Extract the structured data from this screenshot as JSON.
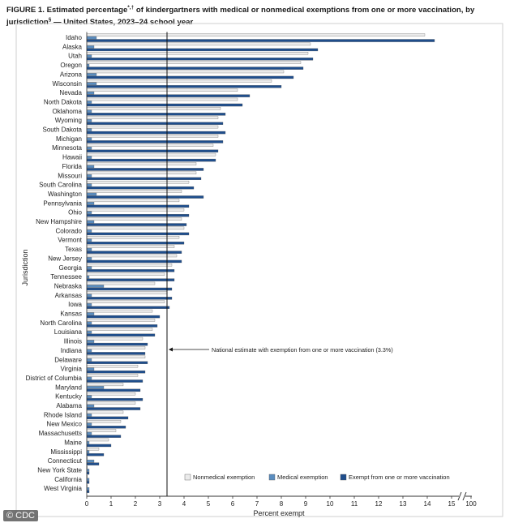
{
  "figure_title_parts": [
    "FIGURE 1. Estimated percentage",
    "*,†",
    " of kindergartners with medical or nonmedical exemptions from one or more vaccination, by",
    "jurisdiction",
    "§",
    " — United States, 2023–24 school year"
  ],
  "credit": "© CDC",
  "colors": {
    "nonmedical": "#ebebeb",
    "medical": "#5a8dc0",
    "exempt": "#1f4e8c",
    "bar_stroke": "#555555",
    "axis": "#333333"
  },
  "chart_data": {
    "type": "bar",
    "orientation": "horizontal",
    "ylabel": "Jurisdiction",
    "xlabel": "Percent exempt",
    "xlim": [
      0,
      15
    ],
    "x_ticks": [
      "0",
      "1",
      "2",
      "3",
      "4",
      "5",
      "6",
      "7",
      "8",
      "9",
      "10",
      "11",
      "12",
      "13",
      "14",
      "15",
      "100"
    ],
    "axis_break": true,
    "reference_line": {
      "value": 3.3,
      "label": "National estimate with exemption from one or more vaccination (3.3%)"
    },
    "legend": [
      "Nonmedical exemption",
      "Medical exemption",
      "Exempt from one or more vaccination"
    ],
    "legend_position": "bottom-right",
    "categories": [
      "Idaho",
      "Alaska",
      "Utah",
      "Oregon",
      "Arizona",
      "Wisconsin",
      "Nevada",
      "North Dakota",
      "Oklahoma",
      "Wyoming",
      "South Dakota",
      "Michigan",
      "Minnesota",
      "Hawaii",
      "Florida",
      "Missouri",
      "South Carolina",
      "Washington",
      "Pennsylvania",
      "Ohio",
      "New Hampshire",
      "Colorado",
      "Vermont",
      "Texas",
      "New Jersey",
      "Georgia",
      "Tennessee",
      "Nebraska",
      "Arkansas",
      "Iowa",
      "Kansas",
      "North Carolina",
      "Louisiana",
      "Illinois",
      "Indiana",
      "Delaware",
      "Virginia",
      "District of Columbia",
      "Maryland",
      "Kentucky",
      "Alabama",
      "Rhode Island",
      "New Mexico",
      "Massachusetts",
      "Maine",
      "Mississippi",
      "Connecticut",
      "New York State",
      "California",
      "West Virginia"
    ],
    "series": [
      {
        "name": "Nonmedical exemption",
        "values": [
          13.9,
          9.2,
          9.1,
          8.8,
          8.1,
          7.6,
          6.2,
          6.2,
          5.5,
          5.4,
          5.4,
          5.4,
          5.2,
          5.3,
          4.5,
          4.5,
          4.2,
          3.9,
          3.8,
          4.0,
          3.9,
          4.0,
          3.8,
          3.6,
          3.7,
          3.5,
          3.2,
          2.8,
          3.3,
          3.2,
          2.7,
          2.8,
          2.7,
          2.3,
          2.4,
          2.4,
          2.1,
          2.1,
          1.5,
          2.0,
          2.0,
          1.5,
          1.4,
          1.2,
          0.9,
          0.5,
          0.0,
          0.0,
          0.0,
          0.0
        ]
      },
      {
        "name": "Medical exemption",
        "values": [
          0.4,
          0.3,
          0.2,
          0.1,
          0.4,
          0.4,
          0.3,
          0.2,
          0.2,
          0.2,
          0.2,
          0.2,
          0.2,
          0.2,
          0.3,
          0.2,
          0.2,
          0.4,
          0.3,
          0.2,
          0.3,
          0.2,
          0.2,
          0.2,
          0.2,
          0.2,
          0.1,
          0.7,
          0.2,
          0.2,
          0.3,
          0.2,
          0.2,
          0.3,
          0.2,
          0.2,
          0.3,
          0.2,
          0.7,
          0.2,
          0.3,
          0.2,
          0.2,
          0.2,
          0.1,
          0.1,
          0.3,
          0.1,
          0.1,
          0.1
        ]
      },
      {
        "name": "Exempt from one or more vaccination",
        "values": [
          14.3,
          9.5,
          9.3,
          8.9,
          8.5,
          8.0,
          6.7,
          6.4,
          5.7,
          5.6,
          5.7,
          5.6,
          5.4,
          5.3,
          4.8,
          4.7,
          4.4,
          4.8,
          4.2,
          4.2,
          4.1,
          4.2,
          4.0,
          3.9,
          3.9,
          3.6,
          3.6,
          3.5,
          3.5,
          3.4,
          3.0,
          2.9,
          2.8,
          2.5,
          2.4,
          2.5,
          2.4,
          2.3,
          2.2,
          2.3,
          2.2,
          1.7,
          1.6,
          1.4,
          1.0,
          0.7,
          0.5,
          0.1,
          0.1,
          0.1
        ]
      }
    ]
  }
}
